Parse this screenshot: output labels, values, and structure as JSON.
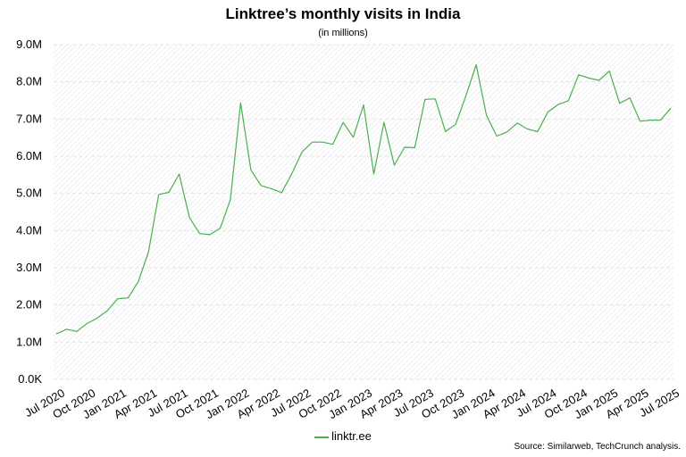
{
  "chart_data": {
    "type": "line",
    "title": "Linktree’s monthly visits in India",
    "subtitle": "(in millions)",
    "y_ticks": [
      "0.0K",
      "1.0M",
      "2.0M",
      "3.0M",
      "4.0M",
      "5.0M",
      "6.0M",
      "7.0M",
      "8.0M",
      "9.0M"
    ],
    "ylim": [
      0,
      9
    ],
    "x_ticks": [
      "Jul 2020",
      "Oct 2020",
      "Jan 2021",
      "Apr 2021",
      "Jul 2021",
      "Oct 2021",
      "Jan 2022",
      "Apr 2022",
      "Jul 2022",
      "Oct 2022",
      "Jan 2023",
      "Apr 2023",
      "Jul 2023",
      "Oct 2023",
      "Jan 2024",
      "Apr 2024",
      "Jul 2024",
      "Oct 2024",
      "Jan 2025",
      "Apr 2025",
      "Jul 2025"
    ],
    "x": [
      "Jul 2020",
      "Aug 2020",
      "Sep 2020",
      "Oct 2020",
      "Nov 2020",
      "Dec 2020",
      "Jan 2021",
      "Feb 2021",
      "Mar 2021",
      "Apr 2021",
      "May 2021",
      "Jun 2021",
      "Jul 2021",
      "Aug 2021",
      "Sep 2021",
      "Oct 2021",
      "Nov 2021",
      "Dec 2021",
      "Jan 2022",
      "Feb 2022",
      "Mar 2022",
      "Apr 2022",
      "May 2022",
      "Jun 2022",
      "Jul 2022",
      "Aug 2022",
      "Sep 2022",
      "Oct 2022",
      "Nov 2022",
      "Dec 2022",
      "Jan 2023",
      "Feb 2023",
      "Mar 2023",
      "Apr 2023",
      "May 2023",
      "Jun 2023",
      "Jul 2023",
      "Aug 2023",
      "Sep 2023",
      "Oct 2023",
      "Nov 2023",
      "Dec 2023",
      "Jan 2024",
      "Feb 2024",
      "Mar 2024",
      "Apr 2024",
      "May 2024",
      "Jun 2024",
      "Jul 2024",
      "Aug 2024",
      "Sep 2024",
      "Oct 2024",
      "Nov 2024",
      "Dec 2024",
      "Jan 2025",
      "Feb 2025",
      "Mar 2025",
      "Apr 2025",
      "May 2025",
      "Jun 2025",
      "Jul 2025"
    ],
    "series": [
      {
        "name": "linktr.ee",
        "color": "#4caf50",
        "values": [
          1.22,
          1.35,
          1.29,
          1.5,
          1.65,
          1.85,
          2.17,
          2.19,
          2.62,
          3.42,
          4.97,
          5.03,
          5.52,
          4.35,
          3.92,
          3.89,
          4.06,
          4.83,
          7.43,
          5.63,
          5.21,
          5.13,
          5.02,
          5.53,
          6.12,
          6.38,
          6.38,
          6.32,
          6.91,
          6.51,
          7.38,
          5.52,
          6.91,
          5.76,
          6.24,
          6.23,
          7.53,
          7.54,
          6.66,
          6.86,
          7.63,
          8.46,
          7.1,
          6.54,
          6.65,
          6.89,
          6.73,
          6.66,
          7.19,
          7.39,
          7.49,
          8.19,
          8.1,
          8.04,
          8.29,
          7.42,
          7.57,
          6.94,
          6.97,
          6.97,
          7.29
        ]
      }
    ],
    "grid": true,
    "legend_position": "bottom-center",
    "source": "Source: Similarweb, TechCrunch analysis."
  }
}
